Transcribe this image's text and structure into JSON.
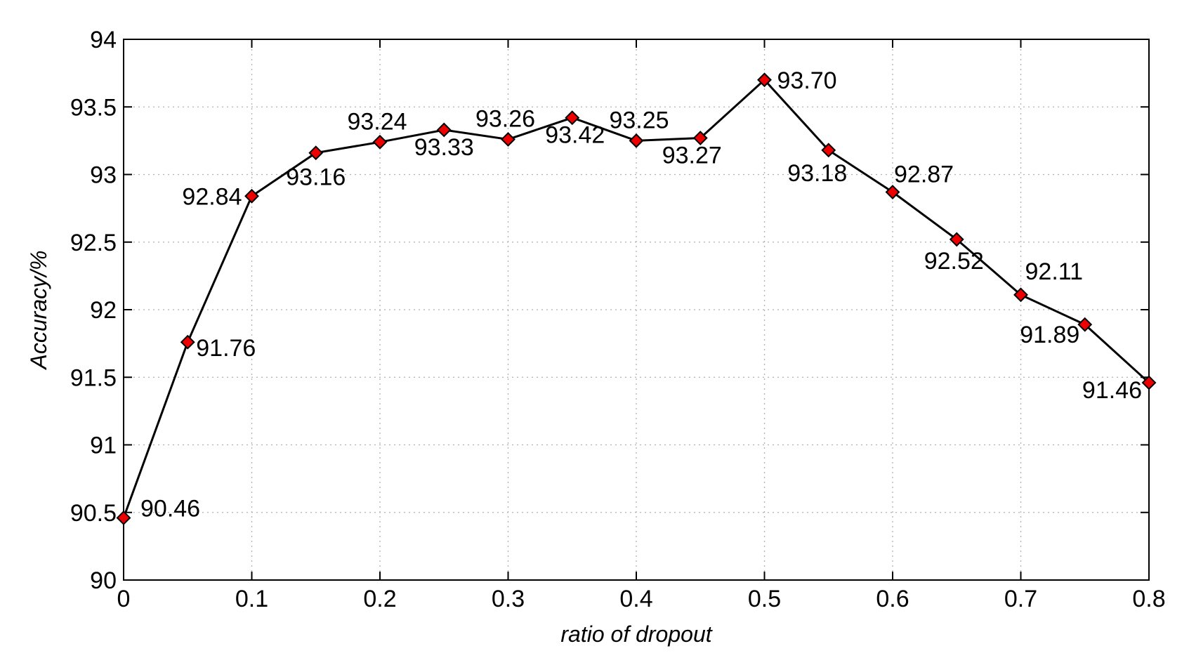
{
  "chart_data": {
    "type": "line",
    "xlabel": "ratio of dropout",
    "ylabel": "Accuracy/%",
    "xlim": [
      0,
      0.8
    ],
    "ylim": [
      90,
      94
    ],
    "grid": true,
    "x_ticks": [
      "0",
      "0.1",
      "0.2",
      "0.3",
      "0.4",
      "0.5",
      "0.6",
      "0.7",
      "0.8"
    ],
    "y_ticks": [
      "90",
      "90.5",
      "91",
      "91.5",
      "92",
      "92.5",
      "93",
      "93.5",
      "94"
    ],
    "marker": "diamond",
    "line_color": "#000000",
    "marker_color": "#ee0000",
    "series": [
      {
        "x": [
          0,
          0.05,
          0.1,
          0.15,
          0.2,
          0.25,
          0.3,
          0.35,
          0.4,
          0.45,
          0.5,
          0.55,
          0.6,
          0.65,
          0.7,
          0.75,
          0.8
        ],
        "values": [
          90.46,
          91.76,
          92.84,
          93.16,
          93.24,
          93.33,
          93.26,
          93.42,
          93.25,
          93.27,
          93.7,
          93.18,
          92.87,
          92.52,
          92.11,
          91.89,
          91.46
        ],
        "labels": [
          "90.46",
          "91.76",
          "92.84",
          "93.16",
          "93.24",
          "93.33",
          "93.26",
          "93.42",
          "93.25",
          "93.27",
          "93.70",
          "93.18",
          "92.87",
          "92.52",
          "92.11",
          "91.89",
          "91.46"
        ]
      }
    ]
  }
}
